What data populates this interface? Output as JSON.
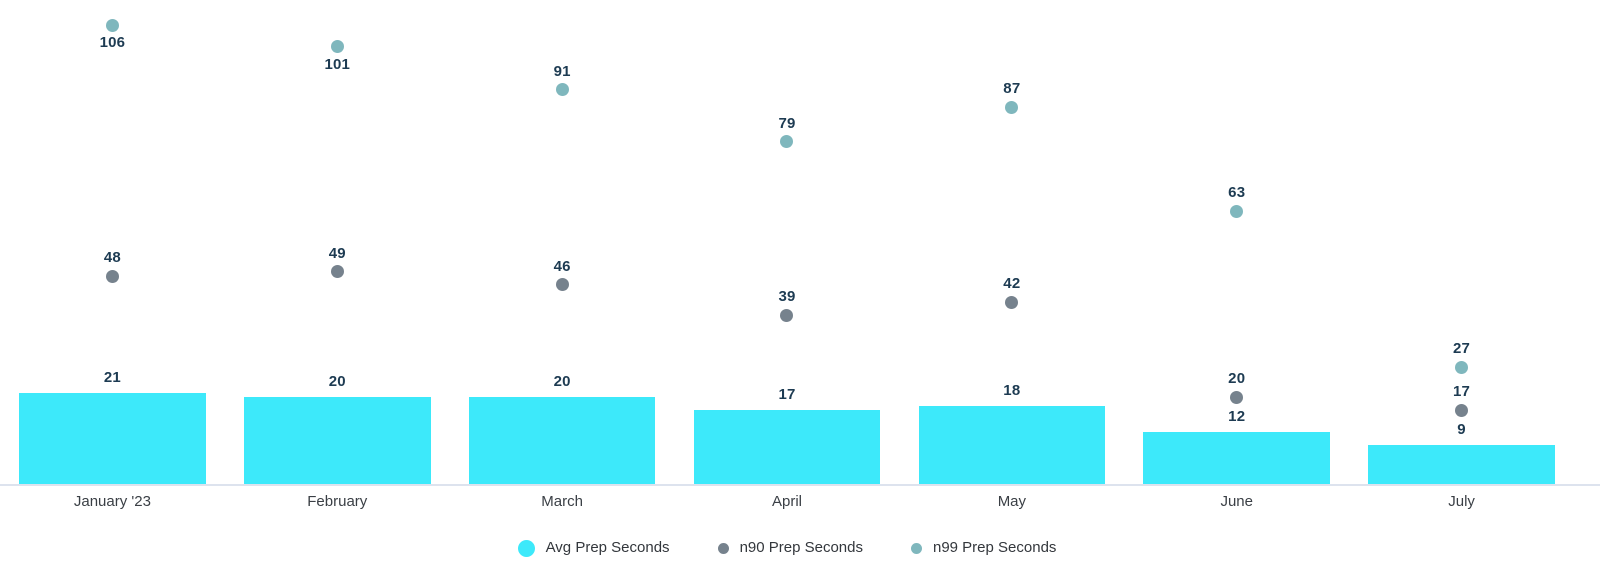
{
  "chart_data": {
    "type": "combo_bar_scatter",
    "categories": [
      "January '23",
      "February",
      "March",
      "April",
      "May",
      "June",
      "July"
    ],
    "series": [
      {
        "name": "Avg Prep Seconds",
        "type": "bar",
        "color": "#3DE9FA",
        "values": [
          21,
          20,
          20,
          17,
          18,
          12,
          9
        ]
      },
      {
        "name": "n90 Prep Seconds",
        "type": "scatter",
        "color": "#76828D",
        "values": [
          48,
          49,
          46,
          39,
          42,
          20,
          17
        ]
      },
      {
        "name": "n99 Prep Seconds",
        "type": "scatter",
        "color": "#7FB7BD",
        "values": [
          106,
          101,
          91,
          79,
          87,
          63,
          27
        ],
        "label_below_indices": [
          0,
          1
        ]
      }
    ],
    "data_labels": true,
    "value_label_color": "#1D3B52",
    "axis_label_color": "#3A3F45",
    "axis_line_color": "#DDE3EE",
    "background": "#FFFFFF",
    "xlabel": "",
    "ylabel": "",
    "ylim": [
      0,
      112
    ],
    "grid": false,
    "legend_position": "bottom-center"
  }
}
